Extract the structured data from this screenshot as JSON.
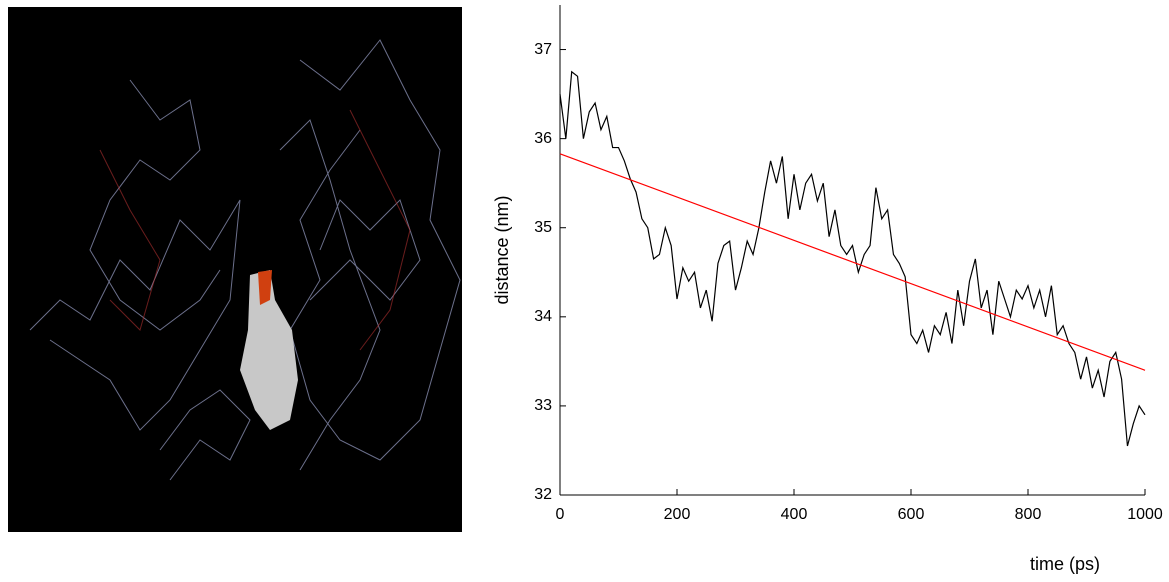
{
  "chart_data": {
    "type": "line",
    "xlabel": "time (ps)",
    "ylabel": "distance (nm)",
    "xlim": [
      0,
      1000
    ],
    "ylim": [
      32,
      37.5
    ],
    "xticks": [
      0,
      200,
      400,
      600,
      800,
      1000
    ],
    "yticks": [
      32,
      33,
      34,
      35,
      36,
      37
    ],
    "series": [
      {
        "color": "#000000",
        "x": [
          0,
          10,
          20,
          30,
          40,
          50,
          60,
          70,
          80,
          90,
          100,
          110,
          120,
          130,
          140,
          150,
          160,
          170,
          180,
          190,
          200,
          210,
          220,
          230,
          240,
          250,
          260,
          270,
          280,
          290,
          300,
          310,
          320,
          330,
          340,
          350,
          360,
          370,
          380,
          390,
          400,
          410,
          420,
          430,
          440,
          450,
          460,
          470,
          480,
          490,
          500,
          510,
          520,
          530,
          540,
          550,
          560,
          570,
          580,
          590,
          600,
          610,
          620,
          630,
          640,
          650,
          660,
          670,
          680,
          690,
          700,
          710,
          720,
          730,
          740,
          750,
          760,
          770,
          780,
          790,
          800,
          810,
          820,
          830,
          840,
          850,
          860,
          870,
          880,
          890,
          900,
          910,
          920,
          930,
          940,
          950,
          960,
          970,
          980,
          990,
          1000
        ],
        "values": [
          36.5,
          36.0,
          36.75,
          36.7,
          36.0,
          36.3,
          36.4,
          36.1,
          36.25,
          35.9,
          35.9,
          35.75,
          35.55,
          35.4,
          35.1,
          35.0,
          34.65,
          34.7,
          35.0,
          34.8,
          34.2,
          34.55,
          34.4,
          34.5,
          34.1,
          34.3,
          33.95,
          34.6,
          34.8,
          34.85,
          34.3,
          34.55,
          34.85,
          34.7,
          35.0,
          35.4,
          35.75,
          35.5,
          35.8,
          35.1,
          35.6,
          35.2,
          35.5,
          35.6,
          35.3,
          35.5,
          34.9,
          35.2,
          34.8,
          34.7,
          34.8,
          34.5,
          34.7,
          34.8,
          35.45,
          35.1,
          35.2,
          34.7,
          34.6,
          34.45,
          33.8,
          33.7,
          33.85,
          33.6,
          33.9,
          33.8,
          34.05,
          33.7,
          34.3,
          33.9,
          34.4,
          34.65,
          34.1,
          34.3,
          33.8,
          34.4,
          34.2,
          34.0,
          34.3,
          34.2,
          34.35,
          34.1,
          34.3,
          34.0,
          34.35,
          33.8,
          33.9,
          33.7,
          33.6,
          33.3,
          33.55,
          33.2,
          33.4,
          33.1,
          33.5,
          33.6,
          33.3,
          32.55,
          32.8,
          33.0,
          32.9
        ]
      },
      {
        "color": "#ff0000",
        "x": [
          0,
          1000
        ],
        "values": [
          35.83,
          33.4
        ]
      }
    ]
  }
}
